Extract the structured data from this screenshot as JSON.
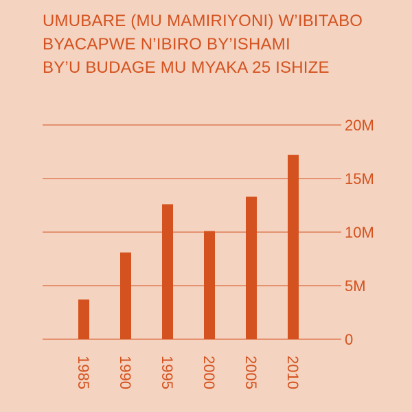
{
  "colors": {
    "background": "#f4d3c0",
    "accent": "#d4521f"
  },
  "chart_data": {
    "type": "bar",
    "title_lines": [
      "UMUBARE (MU MAMIRIYONI) W’IBITABO",
      "BYACAPWE N’IBIRO BY’ISHAMI",
      "BY’U BUDAGE MU MYAKA 25 ISHIZE"
    ],
    "categories": [
      "1985",
      "1990",
      "1995",
      "2000",
      "2005",
      "2010"
    ],
    "values": [
      3.7,
      8.1,
      12.6,
      10.1,
      13.3,
      17.2
    ],
    "ylim": [
      0,
      20
    ],
    "yticks": [
      0,
      5,
      10,
      15,
      20
    ],
    "ytick_labels": [
      "0",
      "5M",
      "10M",
      "15M",
      "20M"
    ],
    "y_axis_position": "right",
    "x_label_orientation": "vertical",
    "grid": true,
    "xlabel": "",
    "ylabel": ""
  }
}
